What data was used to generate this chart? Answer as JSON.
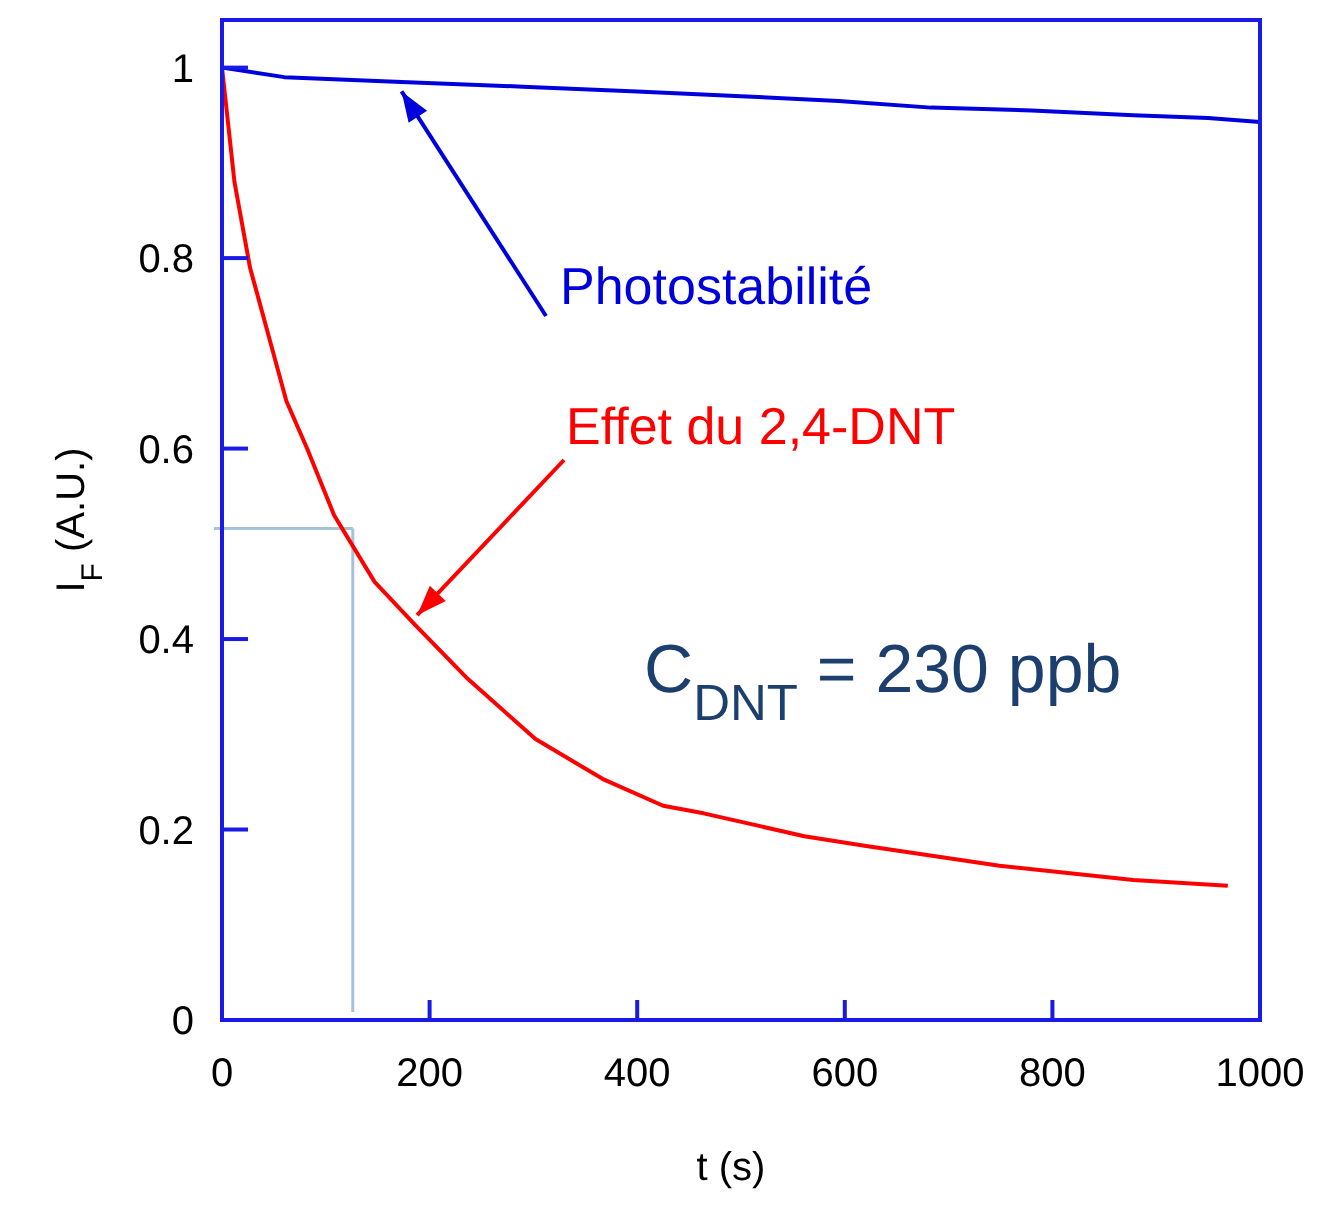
{
  "chart_data": {
    "type": "line",
    "xlabel": "t (s)",
    "ylabel": "I$_{F}$ (A.U.)",
    "xlim": [
      0,
      1000
    ],
    "ylim": [
      0,
      1.05
    ],
    "xticks": [
      0,
      200,
      400,
      600,
      800,
      1000
    ],
    "yticks": [
      0,
      0.2,
      0.4,
      0.6,
      0.8,
      1
    ],
    "grid": false,
    "marker": "none",
    "line_style": "solid",
    "series": [
      {
        "color": "#0000dd",
        "x": [
          0,
          60,
          173,
          290,
          400,
          500,
          594,
          683,
          780,
          878,
          950,
          1000
        ],
        "values": [
          1.0,
          0.99,
          0.985,
          0.98,
          0.975,
          0.97,
          0.965,
          0.958,
          0.955,
          0.95,
          0.947,
          0.943
        ]
      },
      {
        "color": "#ff0000",
        "x": [
          0,
          12,
          27,
          47,
          62,
          82,
          108,
          147,
          186,
          237,
          302,
          367,
          425,
          464,
          561,
          619,
          749,
          878,
          969
        ],
        "values": [
          1.0,
          0.88,
          0.79,
          0.71,
          0.65,
          0.6,
          0.53,
          0.46,
          0.415,
          0.358,
          0.295,
          0.253,
          0.225,
          0.217,
          0.193,
          0.183,
          0.162,
          0.147,
          0.141
        ]
      }
    ],
    "ref_lines": [
      {
        "axis": "y",
        "value": 0.516,
        "color": "#a8c0dc"
      },
      {
        "axis": "x",
        "value": 126,
        "color": "#a8c0dc"
      }
    ],
    "annotations": [
      {
        "text": "Photostabilité",
        "x": 173,
        "y": 0.975
      },
      {
        "text": "Effet du 2,4-DNT",
        "x": 188,
        "y": 0.425
      },
      "C$_{DNT}$ = 230 ppb"
    ]
  }
}
